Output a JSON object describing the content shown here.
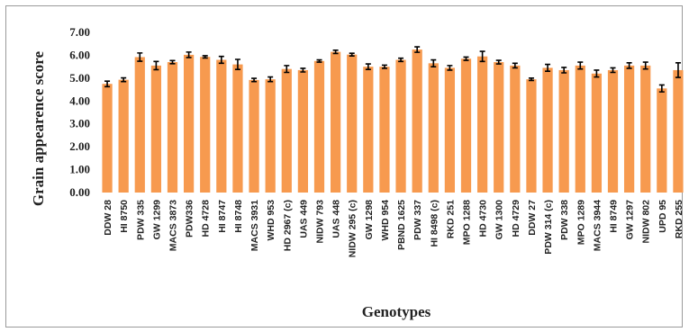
{
  "chart_data": {
    "type": "bar",
    "xlabel": "Genotypes",
    "ylabel": "Grain appearence score",
    "ylim": [
      0,
      7
    ],
    "yticks": [
      "0.00",
      "1.00",
      "2.00",
      "3.00",
      "4.00",
      "5.00",
      "6.00",
      "7.00"
    ],
    "grid": false,
    "bar_color": "#f79a4f",
    "error_bar_color": "#000000",
    "categories": [
      "DDW 28",
      "HI 8750",
      "PDW 335",
      "GW 1299",
      "MACS 3873",
      "PDW336",
      "HD 4728",
      "HI 8747",
      "HI 8748",
      "MACS 3931",
      "WHD 953",
      "HD 2967 (c)",
      "UAS 449",
      "NIDW 793",
      "UAS 448",
      "NIDW 295 (c)",
      "GW 1298",
      "WHD 954",
      "PBND 1625",
      "PDW 337",
      "HI 8498 (c)",
      "RKD 251",
      "MPO 1288",
      "HD 4730",
      "GW 1300",
      "HD 4729",
      "DDW 27",
      "PDW 314 (c)",
      "PDW 338",
      "MPO 1289",
      "MACS 3944",
      "HI 8749",
      "GW 1297",
      "NIDW 802",
      "UPD 95",
      "RKD 255"
    ],
    "values": [
      4.75,
      4.93,
      5.92,
      5.55,
      5.7,
      6.02,
      5.93,
      5.8,
      5.6,
      4.92,
      4.95,
      5.4,
      5.35,
      5.75,
      6.15,
      6.03,
      5.5,
      5.5,
      5.8,
      6.25,
      5.65,
      5.45,
      5.85,
      5.95,
      5.7,
      5.55,
      4.95,
      5.45,
      5.35,
      5.55,
      5.2,
      5.35,
      5.55,
      5.55,
      4.55,
      5.35
    ],
    "errors": [
      0.12,
      0.08,
      0.18,
      0.18,
      0.07,
      0.12,
      0.05,
      0.15,
      0.22,
      0.07,
      0.1,
      0.15,
      0.08,
      0.05,
      0.07,
      0.06,
      0.12,
      0.07,
      0.07,
      0.12,
      0.15,
      0.1,
      0.07,
      0.22,
      0.08,
      0.1,
      0.05,
      0.15,
      0.12,
      0.15,
      0.15,
      0.1,
      0.12,
      0.15,
      0.15,
      0.32
    ]
  }
}
